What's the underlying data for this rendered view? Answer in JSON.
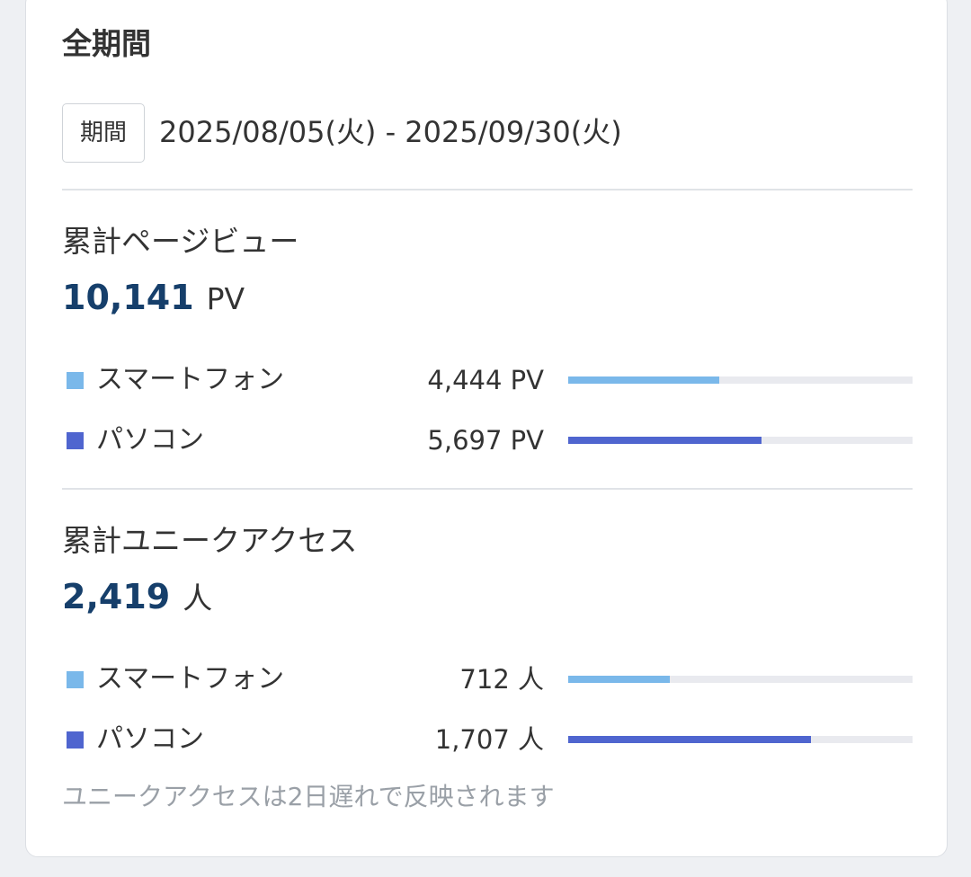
{
  "card": {
    "title": "全期間",
    "period": {
      "badge": "期間",
      "range": "2025/08/05(火) - 2025/09/30(火)"
    }
  },
  "pageviews": {
    "label": "累計ページビュー",
    "total": "10,141",
    "unit": "PV",
    "rows": [
      {
        "label": "スマートフォン",
        "value": "4,444 PV",
        "share": 0.438,
        "color": "#7ab8ea"
      },
      {
        "label": "パソコン",
        "value": "5,697 PV",
        "share": 0.562,
        "color": "#4f65cf"
      }
    ]
  },
  "unique": {
    "label": "累計ユニークアクセス",
    "total": "2,419",
    "unit": "人",
    "rows": [
      {
        "label": "スマートフォン",
        "value": "712 人",
        "share": 0.294,
        "color": "#7ab8ea"
      },
      {
        "label": "パソコン",
        "value": "1,707 人",
        "share": 0.706,
        "color": "#4f65cf"
      }
    ]
  },
  "note": "ユニークアクセスは2日遅れで反映されます"
}
